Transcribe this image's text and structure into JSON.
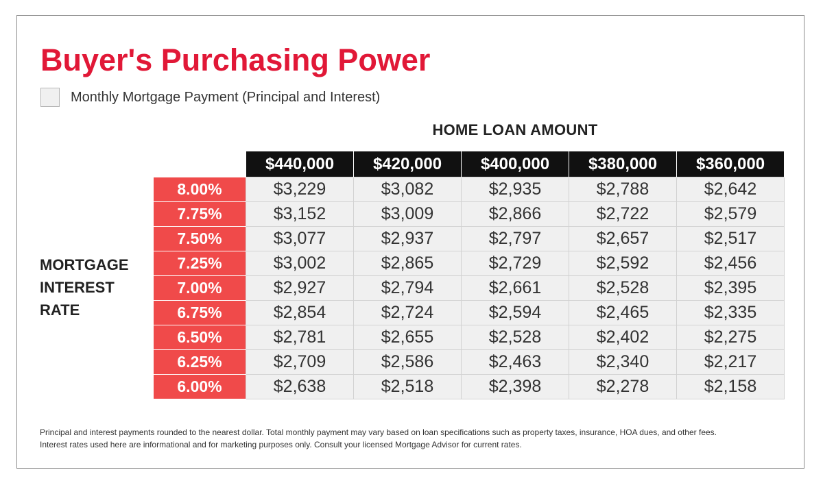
{
  "title": "Buyer's Purchasing Power",
  "legend": {
    "label": "Monthly Mortgage Payment (Principal and Interest)"
  },
  "column_heading": "HOME LOAN AMOUNT",
  "row_heading": [
    "MORTGAGE",
    "INTEREST",
    "RATE"
  ],
  "table": {
    "loan_amounts": [
      "$440,000",
      "$420,000",
      "$400,000",
      "$380,000",
      "$360,000"
    ],
    "rows": [
      {
        "rate": "8.00%",
        "payments": [
          "$3,229",
          "$3,082",
          "$2,935",
          "$2,788",
          "$2,642"
        ]
      },
      {
        "rate": "7.75%",
        "payments": [
          "$3,152",
          "$3,009",
          "$2,866",
          "$2,722",
          "$2,579"
        ]
      },
      {
        "rate": "7.50%",
        "payments": [
          "$3,077",
          "$2,937",
          "$2,797",
          "$2,657",
          "$2,517"
        ]
      },
      {
        "rate": "7.25%",
        "payments": [
          "$3,002",
          "$2,865",
          "$2,729",
          "$2,592",
          "$2,456"
        ]
      },
      {
        "rate": "7.00%",
        "payments": [
          "$2,927",
          "$2,794",
          "$2,661",
          "$2,528",
          "$2,395"
        ]
      },
      {
        "rate": "6.75%",
        "payments": [
          "$2,854",
          "$2,724",
          "$2,594",
          "$2,465",
          "$2,335"
        ]
      },
      {
        "rate": "6.50%",
        "payments": [
          "$2,781",
          "$2,655",
          "$2,528",
          "$2,402",
          "$2,275"
        ]
      },
      {
        "rate": "6.25%",
        "payments": [
          "$2,709",
          "$2,586",
          "$2,463",
          "$2,340",
          "$2,217"
        ]
      },
      {
        "rate": "6.00%",
        "payments": [
          "$2,638",
          "$2,518",
          "$2,398",
          "$2,278",
          "$2,158"
        ]
      }
    ]
  },
  "footnote": [
    "Principal and interest payments rounded to the nearest dollar. Total monthly payment may vary based on loan specifications such as property taxes, insurance, HOA dues, and other fees.",
    "Interest rates used here are informational and for marketing purposes only. Consult your licensed Mortgage Advisor for current rates."
  ],
  "colors": {
    "title": "#e11837",
    "rate_cell": "#f04a4a",
    "header_cell": "#111111",
    "payment_cell": "#f0f0f0",
    "legend_swatch": "#f0f0f0"
  }
}
